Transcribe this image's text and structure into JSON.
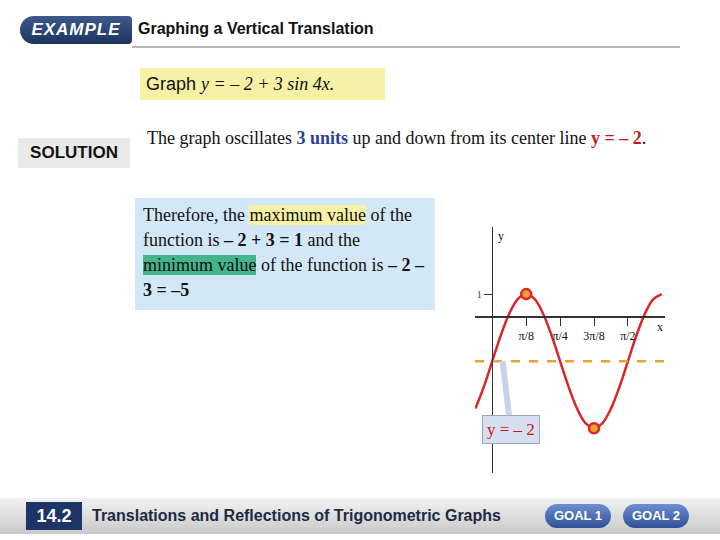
{
  "header": {
    "badge": "EXAMPLE",
    "title": "Graphing a Vertical Translation"
  },
  "problem": [
    {
      "text": "Graph "
    },
    {
      "text": "y = – 2 + 3 sin 4x.",
      "style": "italic"
    }
  ],
  "solution_label": "SOLUTION",
  "solution_text": [
    {
      "text": "The graph oscillates "
    },
    {
      "text": "3 units",
      "style": "bold-blue"
    },
    {
      "text": " up and down from its center line "
    },
    {
      "text": "y = – 2",
      "style": "bold-red"
    },
    {
      "text": "."
    }
  ],
  "conclusion": [
    {
      "text": "Therefore, the "
    },
    {
      "text": "maximum value",
      "style": "highlight-yellow"
    },
    {
      "text": " of the function is "
    },
    {
      "text": "– 2 + 3 = 1",
      "style": "bold"
    },
    {
      "text": " and the "
    },
    {
      "text": "minimum value",
      "style": "highlight-green"
    },
    {
      "text": " of the function is "
    },
    {
      "text": "– 2 – 3 = –5",
      "style": "bold"
    }
  ],
  "footer": {
    "section": "14.2",
    "title": "Translations and Reflections of Trigonometric Graphs",
    "goals": [
      "GOAL 1",
      "GOAL 2"
    ]
  },
  "chart_data": {
    "type": "line",
    "x": [
      -0.196,
      -0.098,
      0,
      0.098,
      0.196,
      0.295,
      0.393,
      0.491,
      0.589,
      0.687,
      0.785,
      0.884,
      0.982,
      1.08,
      1.178,
      1.276,
      1.374,
      1.473,
      1.571,
      1.669,
      1.767,
      1.865,
      1.963
    ],
    "values": [
      -4.121,
      -3.148,
      -2,
      -0.852,
      0.121,
      0.772,
      1,
      0.772,
      0.121,
      -0.852,
      -2,
      -3.148,
      -4.121,
      -4.772,
      -5,
      -4.772,
      -4.121,
      -3.148,
      -2,
      -0.852,
      0.121,
      0.772,
      1
    ],
    "color": "#d9262a",
    "line_style": "solid",
    "x_label": "x",
    "y_label": "y",
    "xlim": [
      -0.2,
      2.0
    ],
    "ylim": [
      -7,
      4
    ],
    "xticks": [
      {
        "value": 0.3927,
        "label": "π/8"
      },
      {
        "value": 0.7854,
        "label": "π/4"
      },
      {
        "value": 1.1781,
        "label": "3π/8"
      },
      {
        "value": 1.5708,
        "label": "π/2"
      }
    ],
    "yticks": [
      1
    ],
    "grid": false,
    "center_line": {
      "value": -2,
      "label": "y = – 2",
      "color": "#f0a030",
      "line_style": "dashed"
    },
    "highlight_points": {
      "x": [
        0.3927,
        1.1781
      ],
      "values": [
        1,
        -5
      ],
      "color": "#f0a030"
    }
  }
}
